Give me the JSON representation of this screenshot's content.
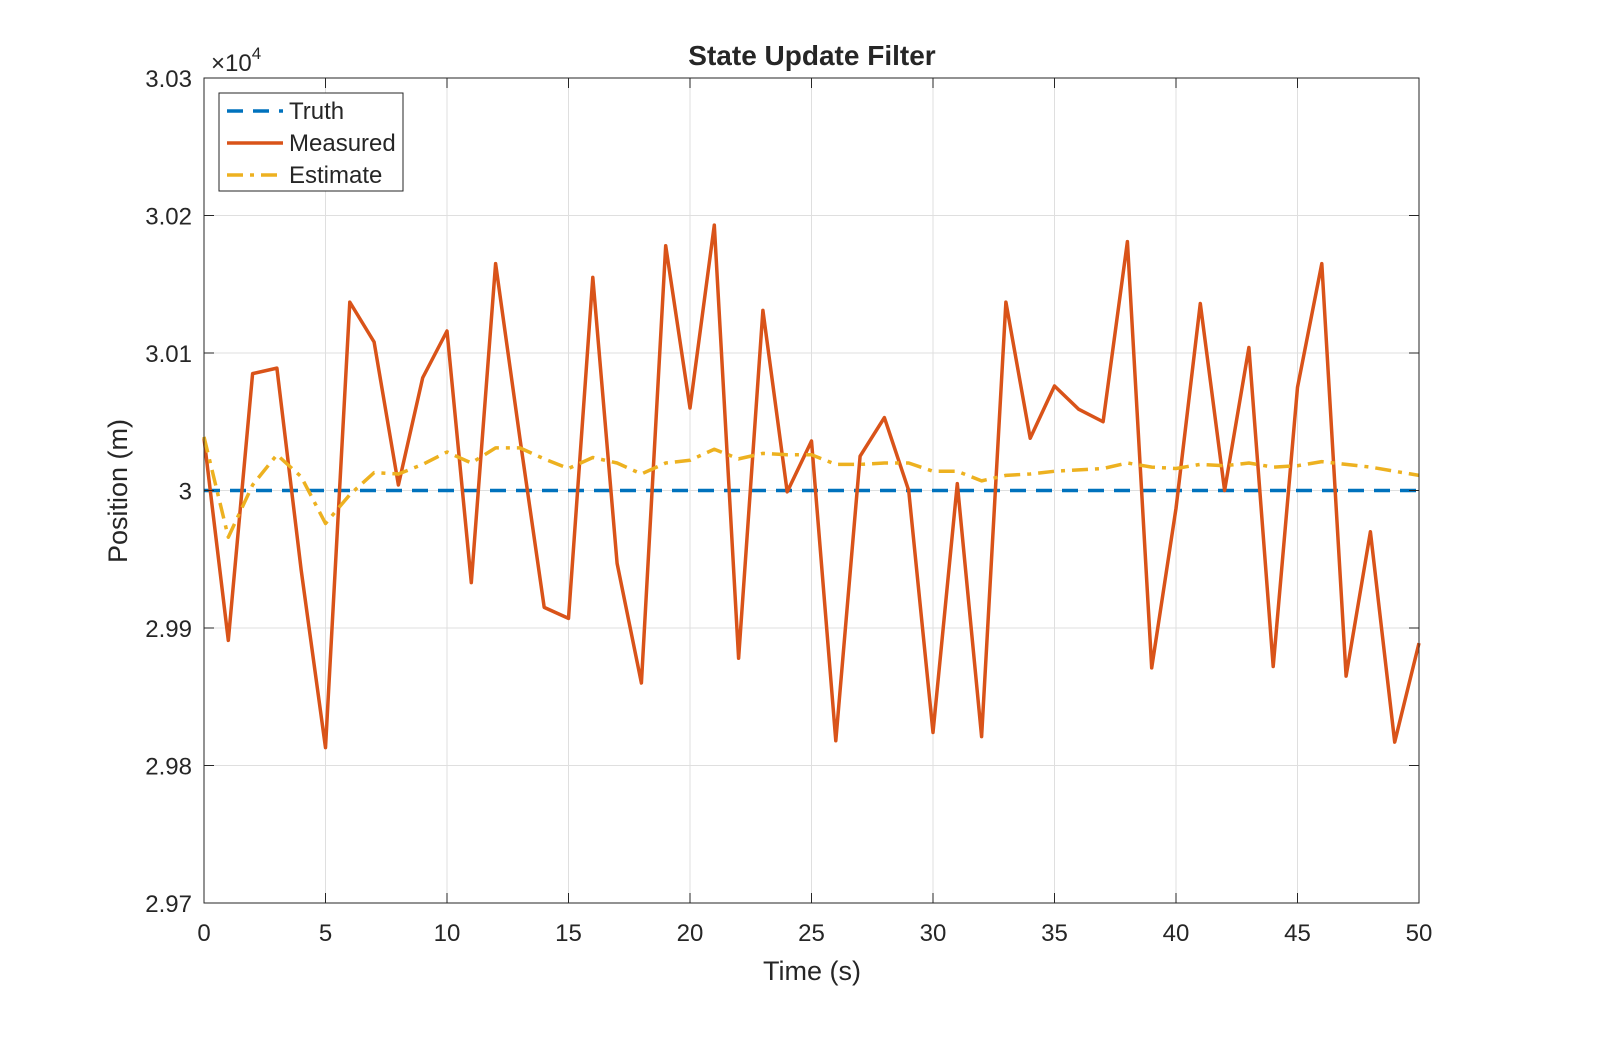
{
  "chart_data": {
    "type": "line",
    "title": "State Update Filter",
    "xlabel": "Time (s)",
    "ylabel": "Position (m)",
    "y_multiplier": {
      "base": "×10",
      "exponent": "4"
    },
    "xlim": [
      0,
      50
    ],
    "ylim": [
      2.97,
      3.03
    ],
    "xticks": [
      0,
      5,
      10,
      15,
      20,
      25,
      30,
      35,
      40,
      45,
      50
    ],
    "xtick_labels": [
      "0",
      "5",
      "10",
      "15",
      "20",
      "25",
      "30",
      "35",
      "40",
      "45",
      "50"
    ],
    "yticks": [
      2.97,
      2.98,
      2.99,
      3.0,
      3.01,
      3.02,
      3.03
    ],
    "ytick_labels": [
      "2.97",
      "2.98",
      "2.99",
      "3",
      "3.01",
      "3.02",
      "3.03"
    ],
    "grid": true,
    "legend_position": "top-left",
    "x": [
      0,
      1,
      2,
      3,
      4,
      5,
      6,
      7,
      8,
      9,
      10,
      11,
      12,
      13,
      14,
      15,
      16,
      17,
      18,
      19,
      20,
      21,
      22,
      23,
      24,
      25,
      26,
      27,
      28,
      29,
      30,
      31,
      32,
      33,
      34,
      35,
      36,
      37,
      38,
      39,
      40,
      41,
      42,
      43,
      44,
      45,
      46,
      47,
      48,
      49,
      50
    ],
    "series": [
      {
        "name": "Truth",
        "color": "#0072BD",
        "line_style": "dashed",
        "values": [
          3.0,
          3.0,
          3.0,
          3.0,
          3.0,
          3.0,
          3.0,
          3.0,
          3.0,
          3.0,
          3.0,
          3.0,
          3.0,
          3.0,
          3.0,
          3.0,
          3.0,
          3.0,
          3.0,
          3.0,
          3.0,
          3.0,
          3.0,
          3.0,
          3.0,
          3.0,
          3.0,
          3.0,
          3.0,
          3.0,
          3.0,
          3.0,
          3.0,
          3.0,
          3.0,
          3.0,
          3.0,
          3.0,
          3.0,
          3.0,
          3.0,
          3.0,
          3.0,
          3.0,
          3.0,
          3.0,
          3.0,
          3.0,
          3.0,
          3.0,
          3.0
        ]
      },
      {
        "name": "Measured",
        "color": "#D95319",
        "line_style": "solid",
        "values": [
          3.0038,
          2.9891,
          3.0085,
          3.0089,
          2.9942,
          2.9813,
          3.0137,
          3.0108,
          3.0004,
          3.0082,
          3.0116,
          2.9933,
          3.0165,
          3.0038,
          2.9915,
          2.9907,
          3.0155,
          2.9947,
          2.986,
          3.0178,
          3.006,
          3.0193,
          2.9878,
          3.0131,
          2.9999,
          3.0036,
          2.9818,
          3.0025,
          3.0053,
          3.0,
          2.9824,
          3.0005,
          2.9821,
          3.0137,
          3.0038,
          3.0076,
          3.0059,
          3.005,
          3.0181,
          2.9871,
          2.9987,
          3.0136,
          3.0,
          3.0104,
          2.9872,
          3.0075,
          3.0165,
          2.9865,
          2.997,
          2.9817,
          2.9889
        ]
      },
      {
        "name": "Estimate",
        "color": "#EDB120",
        "line_style": "dashdot",
        "values": [
          3.0039,
          2.9966,
          3.0004,
          3.0026,
          3.001,
          2.9976,
          2.9997,
          3.0013,
          3.0012,
          3.0019,
          3.0028,
          3.002,
          3.0031,
          3.0031,
          3.0023,
          3.0016,
          3.0024,
          3.002,
          3.0012,
          3.002,
          3.0022,
          3.003,
          3.0023,
          3.0027,
          3.0026,
          3.0026,
          3.0019,
          3.0019,
          3.002,
          3.002,
          3.0014,
          3.0014,
          3.0007,
          3.0011,
          3.0012,
          3.0014,
          3.0015,
          3.0016,
          3.002,
          3.0017,
          3.0016,
          3.0019,
          3.0018,
          3.002,
          3.0017,
          3.0018,
          3.0021,
          3.0019,
          3.0017,
          3.0014,
          3.0011
        ]
      }
    ]
  }
}
